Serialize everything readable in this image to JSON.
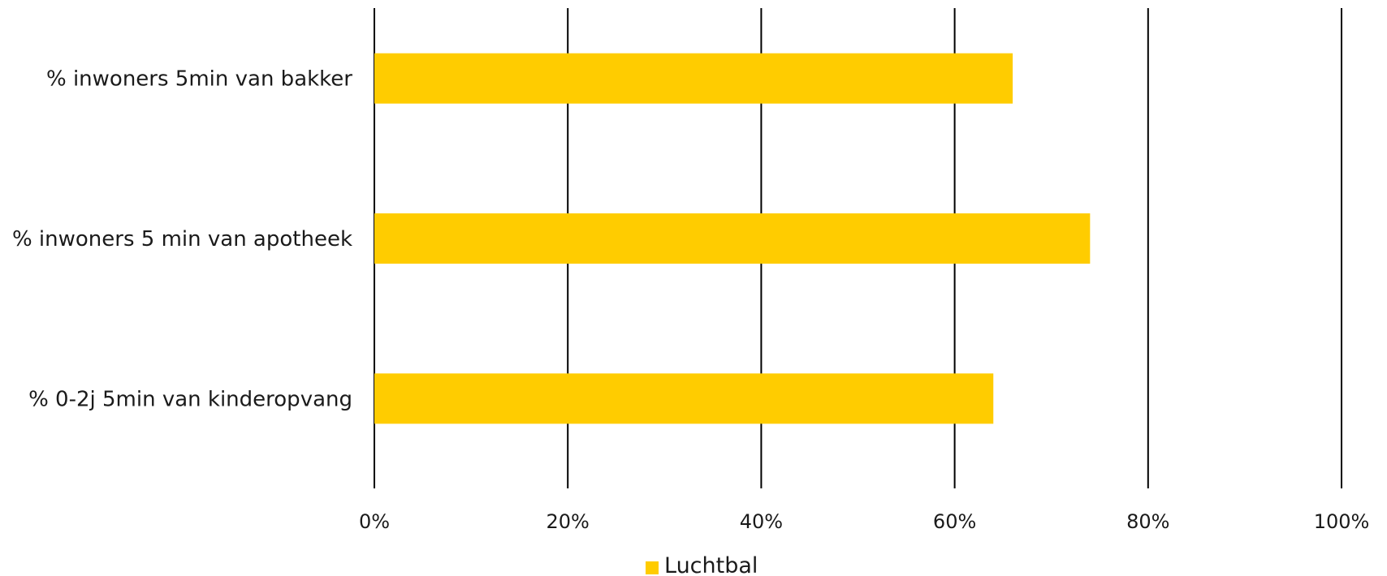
{
  "chart_data": {
    "type": "bar",
    "orientation": "horizontal",
    "categories": [
      "% inwoners 5min van bakker",
      "% inwoners 5 min van apotheek",
      "% 0-2j 5min van kinderopvang"
    ],
    "series": [
      {
        "name": "Luchtbal",
        "values": [
          66,
          74,
          64
        ],
        "color": "#FFCC00"
      }
    ],
    "x_ticks": [
      "0%",
      "20%",
      "40%",
      "60%",
      "80%",
      "100%"
    ],
    "xlim": [
      0,
      100
    ],
    "grid": true,
    "legend_position": "bottom",
    "title": "",
    "xlabel": "",
    "ylabel": ""
  }
}
